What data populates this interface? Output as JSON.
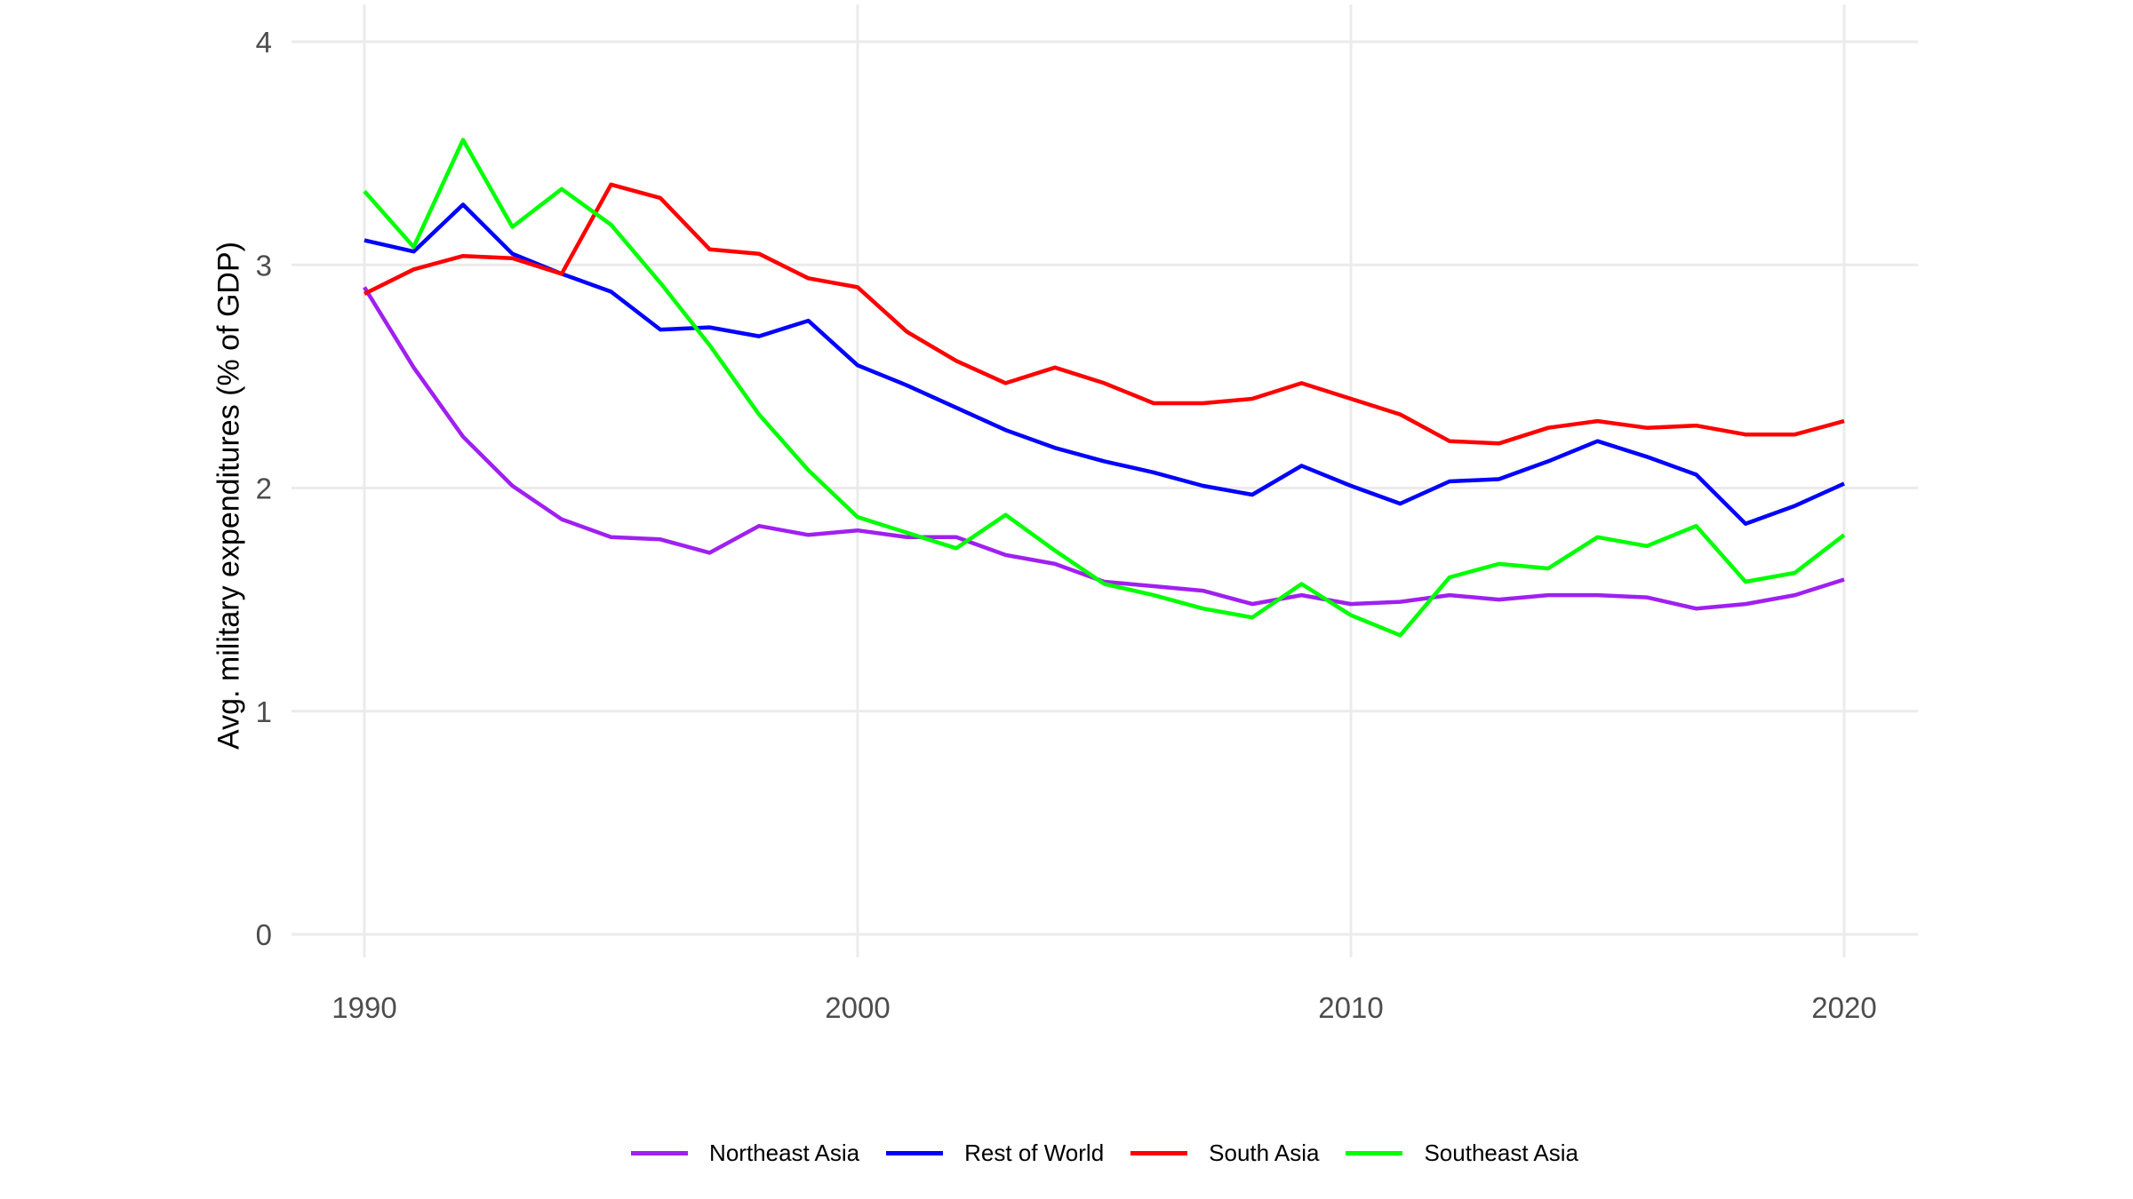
{
  "colors": {
    "background": "#FFFFFF",
    "grid": "#EBEBEB",
    "tick_label": "#4D4D4D",
    "axis_title": "#000000",
    "legend_text": "#000000"
  },
  "chart_data": {
    "type": "line",
    "title": "",
    "xlabel": "",
    "ylabel": "Avg. military expenditures (% of GDP)",
    "grid": true,
    "legend_position": "bottom",
    "ylim": [
      0,
      4
    ],
    "y_ticks": [
      0,
      1,
      2,
      3,
      4
    ],
    "x_ticks": [
      1990,
      2000,
      2010,
      2020
    ],
    "x": [
      1990,
      1991,
      1992,
      1993,
      1994,
      1995,
      1996,
      1997,
      1998,
      1999,
      2000,
      2001,
      2002,
      2003,
      2004,
      2005,
      2006,
      2007,
      2008,
      2009,
      2010,
      2011,
      2012,
      2013,
      2014,
      2015,
      2016,
      2017,
      2018,
      2019,
      2020
    ],
    "series": [
      {
        "name": "Northeast Asia",
        "color": "#A020F0",
        "values": [
          2.9,
          2.54,
          2.23,
          2.01,
          1.86,
          1.78,
          1.77,
          1.71,
          1.83,
          1.79,
          1.81,
          1.78,
          1.78,
          1.7,
          1.66,
          1.58,
          1.56,
          1.54,
          1.48,
          1.52,
          1.48,
          1.49,
          1.52,
          1.5,
          1.52,
          1.52,
          1.51,
          1.46,
          1.48,
          1.52,
          1.59
        ]
      },
      {
        "name": "Rest of World",
        "color": "#0000FF",
        "values": [
          3.11,
          3.06,
          3.27,
          3.05,
          2.96,
          2.88,
          2.71,
          2.72,
          2.68,
          2.75,
          2.55,
          2.46,
          2.36,
          2.26,
          2.18,
          2.12,
          2.07,
          2.01,
          1.97,
          2.1,
          2.01,
          1.93,
          2.03,
          2.04,
          2.12,
          2.21,
          2.14,
          2.06,
          1.84,
          1.92,
          2.02
        ]
      },
      {
        "name": "South Asia",
        "color": "#FF0000",
        "values": [
          2.87,
          2.98,
          3.04,
          3.03,
          2.96,
          3.36,
          3.3,
          3.07,
          3.05,
          2.94,
          2.9,
          2.7,
          2.57,
          2.47,
          2.54,
          2.47,
          2.38,
          2.38,
          2.4,
          2.47,
          2.4,
          2.33,
          2.21,
          2.2,
          2.27,
          2.3,
          2.27,
          2.28,
          2.24,
          2.24,
          2.3
        ]
      },
      {
        "name": "Southeast Asia",
        "color": "#00FF00",
        "values": [
          3.33,
          3.08,
          3.56,
          3.17,
          3.34,
          3.18,
          2.92,
          2.64,
          2.33,
          2.08,
          1.87,
          1.8,
          1.73,
          1.88,
          1.72,
          1.57,
          1.52,
          1.46,
          1.42,
          1.57,
          1.43,
          1.34,
          1.6,
          1.66,
          1.64,
          1.78,
          1.74,
          1.83,
          1.58,
          1.62,
          1.79
        ]
      }
    ]
  }
}
